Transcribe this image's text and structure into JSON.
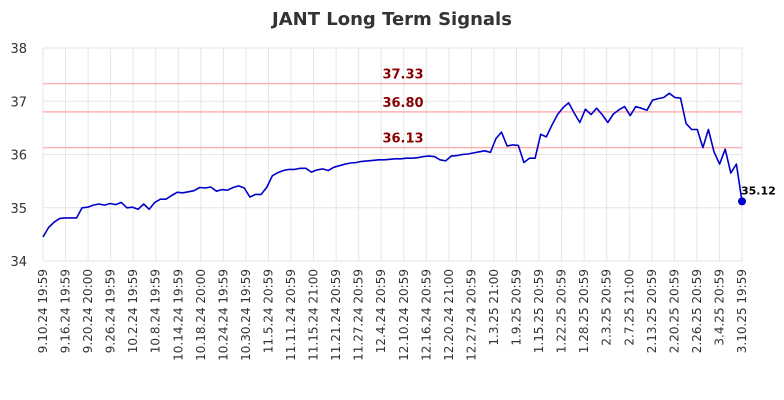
{
  "chart_data": {
    "type": "line",
    "title": "JANT Long Term Signals",
    "xlabel": "",
    "ylabel": "",
    "ylim": [
      34,
      38
    ],
    "y_ticks": [
      "34",
      "35",
      "36",
      "37",
      "38"
    ],
    "x_tick_labels": [
      "9.10.24 19:59",
      "9.16.24 19:59",
      "9.20.24 20:00",
      "9.26.24 19:59",
      "10.2.24 19:59",
      "10.8.24 19:59",
      "10.14.24 19:59",
      "10.18.24 20:00",
      "10.24.24 19:59",
      "10.30.24 19:59",
      "11.5.24 20:59",
      "11.11.24 20:59",
      "11.15.24 21:00",
      "11.21.24 20:59",
      "11.27.24 20:59",
      "12.4.24 20:59",
      "12.10.24 20:59",
      "12.16.24 20:59",
      "12.20.24 21:00",
      "12.27.24 20:59",
      "1.3.25 21:00",
      "1.9.25 20:59",
      "1.15.25 20:59",
      "1.22.25 20:59",
      "1.28.25 20:59",
      "2.3.25 20:59",
      "2.7.25 21:00",
      "2.13.25 20:59",
      "2.20.25 20:59",
      "2.26.25 20:59",
      "3.4.25 20:59",
      "3.10.25 19:59"
    ],
    "grid": true,
    "line_color": "#0000cc",
    "levels": [
      {
        "value": 37.33,
        "label": "37.33",
        "color": "#ffb3b3",
        "label_color": "#8b0000"
      },
      {
        "value": 36.8,
        "label": "36.80",
        "color": "#ffb3b3",
        "label_color": "#8b0000"
      },
      {
        "value": 36.13,
        "label": "36.13",
        "color": "#ffb3b3",
        "label_color": "#8b0000"
      }
    ],
    "last_value_label": "35.12",
    "series": [
      {
        "values": [
          34.45,
          34.63,
          34.73,
          34.8,
          34.81,
          34.81,
          34.81,
          35.0,
          35.01,
          35.05,
          35.07,
          35.05,
          35.08,
          35.06,
          35.1,
          35.0,
          35.01,
          34.97,
          35.07,
          34.97,
          35.1,
          35.16,
          35.16,
          35.23,
          35.29,
          35.28,
          35.3,
          35.32,
          35.38,
          35.37,
          35.39,
          35.31,
          35.34,
          35.33,
          35.38,
          35.41,
          35.37,
          35.2,
          35.25,
          35.25,
          35.38,
          35.6,
          35.66,
          35.7,
          35.72,
          35.72,
          35.74,
          35.74,
          35.67,
          35.71,
          35.73,
          35.7,
          35.76,
          35.79,
          35.82,
          35.84,
          35.85,
          35.87,
          35.88,
          35.89,
          35.9,
          35.9,
          35.91,
          35.92,
          35.92,
          35.93,
          35.93,
          35.94,
          35.96,
          35.97,
          35.96,
          35.9,
          35.88,
          35.97,
          35.98,
          36.0,
          36.01,
          36.03,
          36.05,
          36.07,
          36.04,
          36.3,
          36.42,
          36.16,
          36.18,
          36.17,
          35.85,
          35.93,
          35.93,
          36.38,
          36.33,
          36.55,
          36.75,
          36.88,
          36.97,
          36.78,
          36.6,
          36.85,
          36.75,
          36.87,
          36.75,
          36.6,
          36.76,
          36.84,
          36.9,
          36.73,
          36.9,
          36.87,
          36.83,
          37.02,
          37.05,
          37.07,
          37.15,
          37.07,
          37.06,
          36.58,
          36.47,
          36.47,
          36.13,
          36.47,
          36.05,
          35.82,
          36.1,
          35.65,
          35.82,
          35.12
        ]
      }
    ]
  }
}
